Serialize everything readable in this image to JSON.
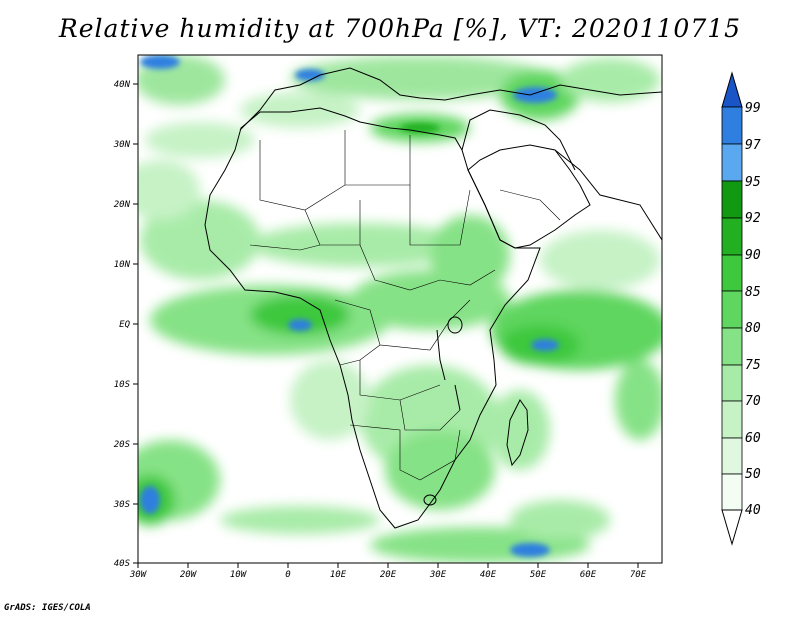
{
  "title": "Relative humidity at 700hPa [%], VT: 2020110715",
  "footer": "GrADS: IGES/COLA",
  "map": {
    "lon_labels": [
      "30W",
      "20W",
      "10W",
      "0",
      "10E",
      "20E",
      "30E",
      "40E",
      "50E",
      "60E",
      "70E"
    ],
    "lat_labels": [
      "40N",
      "30N",
      "20N",
      "10N",
      "EQ",
      "10S",
      "20S",
      "30S",
      "40S"
    ]
  },
  "colorbar": {
    "levels": [
      "99",
      "97",
      "95",
      "92",
      "90",
      "85",
      "80",
      "75",
      "70",
      "60",
      "50",
      "40"
    ],
    "colors": [
      "#1a55c8",
      "#2f7fe0",
      "#5aa8f0",
      "#119a11",
      "#22b022",
      "#3ec83e",
      "#5fd65f",
      "#86e286",
      "#a8eba8",
      "#c6f2c6",
      "#e0f8e0",
      "#f4fdf4"
    ]
  }
}
